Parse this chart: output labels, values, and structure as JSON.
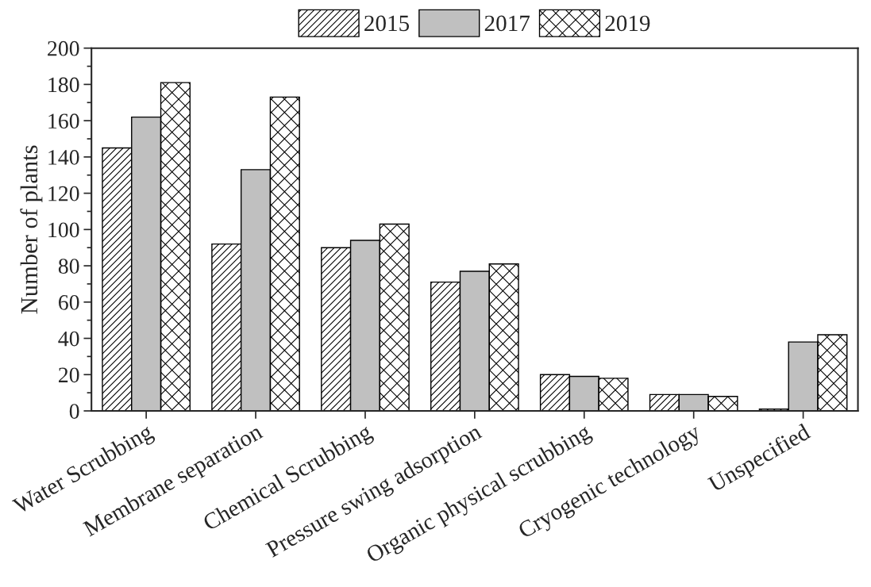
{
  "chart_data": {
    "type": "bar",
    "ylabel": "Number of plants",
    "categories": [
      "Water Scrubbing",
      "Membrane separation",
      "Chemical Scrubbing",
      "Pressure swing adsorption",
      "Organic physical scrubbing",
      "Cryogenic technology",
      "Unspecified"
    ],
    "series": [
      {
        "name": "2015",
        "color": "#000000",
        "values": [
          145,
          92,
          90,
          71,
          20,
          9,
          1
        ]
      },
      {
        "name": "2017",
        "color": "#c0c0c0",
        "values": [
          162,
          133,
          94,
          77,
          19,
          9,
          38
        ]
      },
      {
        "name": "2019",
        "color": "#000000",
        "values": [
          181,
          173,
          103,
          81,
          18,
          8,
          42
        ]
      }
    ],
    "ylim": [
      0,
      200
    ],
    "yticks": [
      0,
      20,
      40,
      60,
      80,
      100,
      120,
      140,
      160,
      180,
      200
    ],
    "grid": false,
    "legend": "top"
  }
}
